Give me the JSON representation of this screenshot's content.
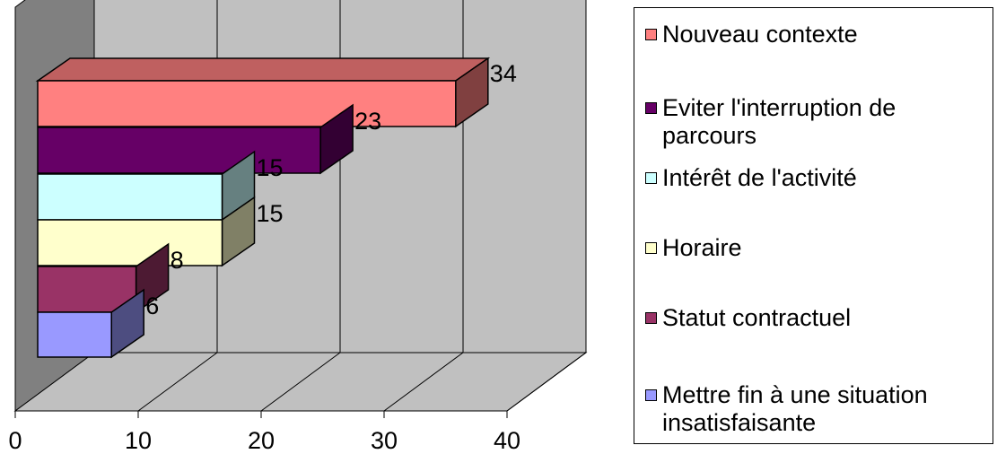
{
  "chart_data": {
    "type": "bar",
    "orientation": "horizontal",
    "three_d": true,
    "categories": [
      "Nouveau contexte",
      "Eviter l'interruption de parcours",
      "Intérêt de l'activité",
      "Horaire",
      "Statut contractuel",
      "Mettre fin à une situation insatisfaisante"
    ],
    "values": [
      34,
      23,
      15,
      15,
      8,
      6
    ],
    "colors": [
      "#ff8080",
      "#660066",
      "#ccffff",
      "#ffffcc",
      "#993366",
      "#9999ff"
    ],
    "xlim": [
      0,
      40
    ],
    "x_ticks": [
      0,
      10,
      20,
      30,
      40
    ],
    "x_tick_labels": [
      "0",
      "10",
      "20",
      "30",
      "40"
    ],
    "grid": true,
    "wall_color": "#c0c0c0",
    "legend_position": "right",
    "title": "",
    "xlabel": "",
    "ylabel": ""
  }
}
